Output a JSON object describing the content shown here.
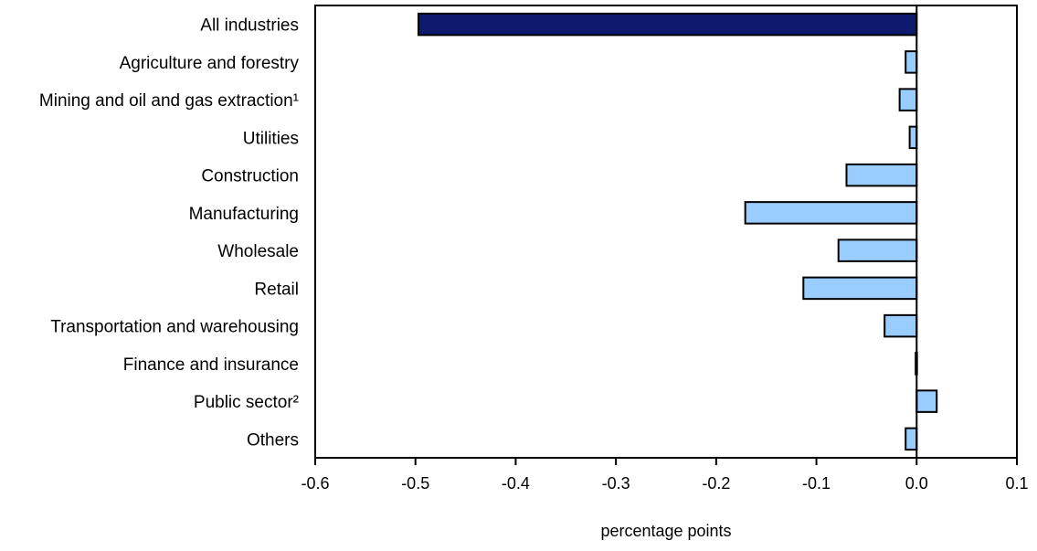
{
  "chart_data": {
    "type": "bar",
    "orientation": "horizontal",
    "categories": [
      "All industries",
      "Agriculture and forestry",
      "Mining and oil and gas extraction¹",
      "Utilities",
      "Construction",
      "Manufacturing",
      "Wholesale",
      "Retail",
      "Transportation and warehousing",
      "Finance and insurance",
      "Public sector²",
      "Others"
    ],
    "values": [
      -0.497,
      -0.011,
      -0.017,
      -0.007,
      -0.07,
      -0.171,
      -0.078,
      -0.113,
      -0.032,
      -0.001,
      0.02,
      -0.011
    ],
    "highlight_index": 0,
    "xlabel": "percentage points",
    "ylabel": "",
    "xlim": [
      -0.6,
      0.1
    ],
    "xticks": [
      -0.6,
      -0.5,
      -0.4,
      -0.3,
      -0.2,
      -0.1,
      0.0,
      0.1
    ],
    "xtick_labels": [
      "-0.6",
      "-0.5",
      "-0.4",
      "-0.3",
      "-0.2",
      "-0.1",
      "0.0",
      "0.1"
    ],
    "grid": false,
    "colors": {
      "highlight": "#0d1a6e",
      "bar": "#99ccff",
      "outline": "#000000"
    }
  }
}
